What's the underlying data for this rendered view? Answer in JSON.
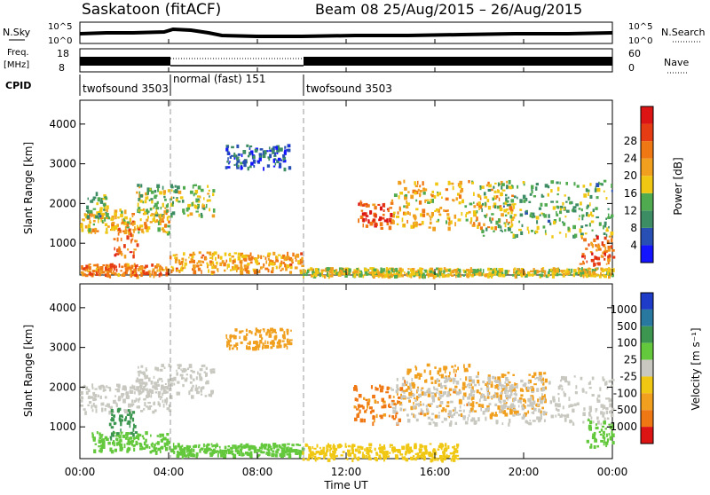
{
  "header": {
    "station": "Saskatoon (fitACF)",
    "beam_dates": "Beam 08  25/Aug/2015 – 26/Aug/2015"
  },
  "aux_labels": {
    "nsky": "N.Sky",
    "nsky_top": "10^5",
    "nsky_bottom": "10^0",
    "nsearch": "N.Search",
    "nsearch_top": "10^5",
    "nsearch_bottom": "10^0",
    "freq": "Freq.",
    "freq_unit": "[MHz]",
    "freq_top": "18",
    "freq_bottom": "8",
    "nave": "Nave",
    "nave_top": "60",
    "nave_bottom": "0",
    "cpid": "CPID",
    "cpid_segments": [
      "twofsound 3503",
      "normal (fast) 151",
      "twofsound 3503"
    ]
  },
  "colorbars": {
    "power": {
      "label": "Power [dB]",
      "ticks": [
        "4",
        "8",
        "12",
        "16",
        "20",
        "24",
        "28"
      ],
      "colors": [
        "#1414ff",
        "#2850b4",
        "#3c8c64",
        "#50aa50",
        "#f0c814",
        "#f0a01e",
        "#f07814",
        "#e63c14",
        "#dc1414"
      ]
    },
    "velocity": {
      "label": "Velocity [m s⁻¹]",
      "ticks": [
        "1000",
        "500",
        "100",
        "25",
        "-25",
        "-100",
        "-500",
        "-1000"
      ],
      "colors": [
        "#1e3cc8",
        "#2878a0",
        "#3c9650",
        "#64c83c",
        "#c8c8c0",
        "#f0c814",
        "#f0a01e",
        "#f07814",
        "#dc1414"
      ]
    }
  },
  "time_axis": {
    "label": "Time UT",
    "ticks": [
      "00:00",
      "04:00",
      "08:00",
      "12:00",
      "16:00",
      "20:00",
      "00:00"
    ]
  },
  "chart_data": [
    {
      "type": "heatmap",
      "name": "power",
      "ylabel": "Slant Range [km]",
      "y_ticks": [
        1000,
        2000,
        3000,
        4000
      ],
      "ylim": [
        200,
        4600
      ],
      "xlim_hours": [
        0,
        24
      ],
      "color_scale": "Power [dB]",
      "regions": [
        {
          "t0": 0.0,
          "t1": 4.0,
          "r0": 1300,
          "r1": 1900,
          "v": 18
        },
        {
          "t0": 0.2,
          "t1": 1.2,
          "r0": 1700,
          "r1": 2300,
          "v": 12
        },
        {
          "t0": 1.5,
          "t1": 2.6,
          "r0": 700,
          "r1": 1600,
          "v": 24
        },
        {
          "t0": 2.5,
          "t1": 6.0,
          "r0": 1700,
          "r1": 2500,
          "v": 14
        },
        {
          "t0": 0.0,
          "t1": 4.0,
          "r0": 200,
          "r1": 500,
          "v": 22
        },
        {
          "t0": 4.0,
          "t1": 10.0,
          "r0": 300,
          "r1": 800,
          "v": 20
        },
        {
          "t0": 10.0,
          "t1": 24.0,
          "r0": 200,
          "r1": 400,
          "v": 16
        },
        {
          "t0": 12.5,
          "t1": 14.0,
          "r0": 1400,
          "r1": 2100,
          "v": 26
        },
        {
          "t0": 14.0,
          "t1": 19.5,
          "r0": 1400,
          "r1": 2600,
          "v": 18
        },
        {
          "t0": 18.0,
          "t1": 24.0,
          "r0": 1200,
          "r1": 2600,
          "v": 12
        },
        {
          "t0": 22.5,
          "t1": 24.0,
          "r0": 500,
          "r1": 1200,
          "v": 24
        },
        {
          "t0": 6.5,
          "t1": 9.5,
          "r0": 2900,
          "r1": 3500,
          "v": 6
        }
      ]
    },
    {
      "type": "heatmap",
      "name": "velocity",
      "ylabel": "Slant Range [km]",
      "y_ticks": [
        1000,
        2000,
        3000,
        4000
      ],
      "ylim": [
        200,
        4600
      ],
      "xlim_hours": [
        0,
        24
      ],
      "color_scale": "Velocity [m s⁻¹]",
      "regions": [
        {
          "t0": 0.0,
          "t1": 4.0,
          "r0": 1400,
          "r1": 2100,
          "v": 0
        },
        {
          "t0": 2.5,
          "t1": 6.0,
          "r0": 1800,
          "r1": 2600,
          "v": 0
        },
        {
          "t0": 1.3,
          "t1": 2.5,
          "r0": 700,
          "r1": 1500,
          "v": 300
        },
        {
          "t0": 0.5,
          "t1": 4.0,
          "r0": 400,
          "r1": 900,
          "v": 50
        },
        {
          "t0": 4.0,
          "t1": 10.0,
          "r0": 300,
          "r1": 600,
          "v": 60
        },
        {
          "t0": 10.0,
          "t1": 17.0,
          "r0": 200,
          "r1": 600,
          "v": -60
        },
        {
          "t0": 12.3,
          "t1": 14.5,
          "r0": 1100,
          "r1": 2100,
          "v": -600
        },
        {
          "t0": 14.5,
          "t1": 17.5,
          "r0": 1300,
          "r1": 2600,
          "v": -400
        },
        {
          "t0": 17.5,
          "t1": 21.0,
          "r0": 1300,
          "r1": 2400,
          "v": -200
        },
        {
          "t0": 14.0,
          "t1": 24.0,
          "r0": 1100,
          "r1": 2300,
          "v": 0
        },
        {
          "t0": 22.8,
          "t1": 24.0,
          "r0": 500,
          "r1": 1200,
          "v": 70
        },
        {
          "t0": 6.5,
          "t1": 9.5,
          "r0": 3000,
          "r1": 3500,
          "v": -300
        }
      ]
    }
  ]
}
